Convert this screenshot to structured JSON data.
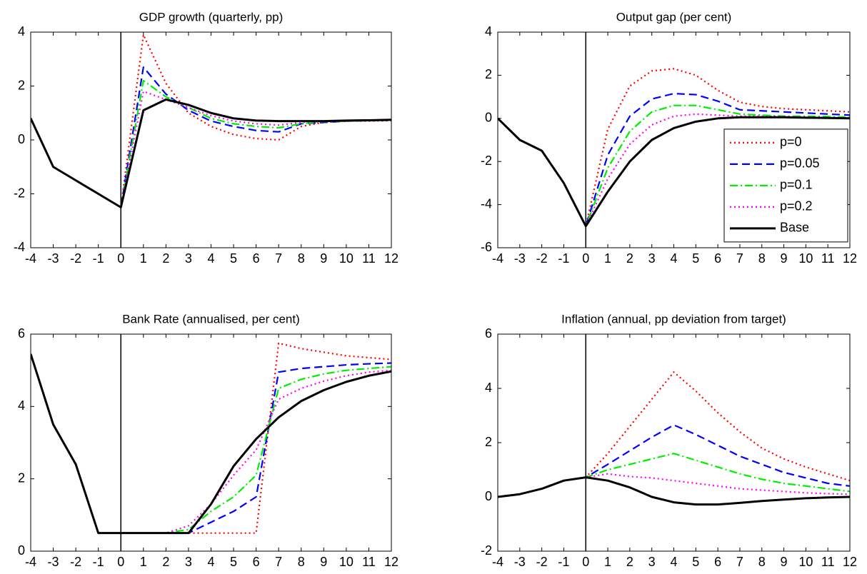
{
  "chart_data": [
    {
      "type": "line",
      "title": "GDP growth (quarterly, pp)",
      "x": [
        -4,
        -3,
        -2,
        -1,
        0,
        1,
        2,
        3,
        4,
        5,
        6,
        7,
        8,
        9,
        10,
        11,
        12
      ],
      "xlim": [
        -4,
        12
      ],
      "xticks": [
        -4,
        -3,
        -2,
        -1,
        0,
        1,
        2,
        3,
        4,
        5,
        6,
        7,
        8,
        9,
        10,
        11,
        12
      ],
      "ylim": [
        -4,
        4
      ],
      "yticks": [
        -4,
        -2,
        0,
        2,
        4
      ],
      "vline": 0,
      "series": [
        {
          "color": "#ff0000",
          "dash": "dotted",
          "values": [
            0.8,
            -1,
            -1.5,
            -2,
            -2.5,
            3.9,
            2.1,
            1.0,
            0.5,
            0.2,
            0.05,
            0.0,
            0.5,
            0.65,
            0.7,
            0.7,
            0.72
          ]
        },
        {
          "color": "#0000ff",
          "dash": "dashed",
          "values": [
            0.8,
            -1,
            -1.5,
            -2,
            -2.5,
            2.7,
            1.7,
            1.1,
            0.7,
            0.5,
            0.35,
            0.3,
            0.6,
            0.65,
            0.7,
            0.72,
            0.73
          ]
        },
        {
          "color": "#00ee00",
          "dash": "dashdot",
          "values": [
            0.8,
            -1,
            -1.5,
            -2,
            -2.5,
            2.2,
            1.6,
            1.2,
            0.8,
            0.6,
            0.5,
            0.45,
            0.6,
            0.68,
            0.7,
            0.72,
            0.74
          ]
        },
        {
          "color": "#ff00ff",
          "dash": "dotted",
          "values": [
            0.8,
            -1,
            -1.5,
            -2,
            -2.5,
            1.8,
            1.5,
            1.2,
            0.9,
            0.7,
            0.6,
            0.55,
            0.65,
            0.7,
            0.72,
            0.73,
            0.75
          ]
        },
        {
          "color": "#000000",
          "dash": "solid",
          "values": [
            0.8,
            -1,
            -1.5,
            -2,
            -2.5,
            1.1,
            1.5,
            1.3,
            1.0,
            0.8,
            0.72,
            0.7,
            0.7,
            0.7,
            0.72,
            0.73,
            0.75
          ]
        }
      ]
    },
    {
      "type": "line",
      "title": "Output gap (per cent)",
      "x": [
        -4,
        -3,
        -2,
        -1,
        0,
        1,
        2,
        3,
        4,
        5,
        6,
        7,
        8,
        9,
        10,
        11,
        12
      ],
      "xlim": [
        -4,
        12
      ],
      "xticks": [
        -4,
        -3,
        -2,
        -1,
        0,
        1,
        2,
        3,
        4,
        5,
        6,
        7,
        8,
        9,
        10,
        11,
        12
      ],
      "ylim": [
        -6,
        4
      ],
      "yticks": [
        -6,
        -4,
        -2,
        0,
        2,
        4
      ],
      "vline": 0,
      "legend": "right",
      "series": [
        {
          "name": "p=0",
          "color": "#ff0000",
          "dash": "dotted",
          "values": [
            0,
            -1,
            -1.5,
            -3,
            -5,
            -0.5,
            1.5,
            2.2,
            2.3,
            2.0,
            1.3,
            0.75,
            0.55,
            0.45,
            0.4,
            0.35,
            0.3
          ]
        },
        {
          "name": "p=0.05",
          "color": "#0000ff",
          "dash": "dashed",
          "values": [
            0,
            -1,
            -1.5,
            -3,
            -5,
            -1.7,
            0.1,
            0.9,
            1.15,
            1.1,
            0.8,
            0.4,
            0.35,
            0.3,
            0.25,
            0.2,
            0.15
          ]
        },
        {
          "name": "p=0.1",
          "color": "#00ee00",
          "dash": "dashdot",
          "values": [
            0,
            -1,
            -1.5,
            -3,
            -5,
            -2.3,
            -0.6,
            0.3,
            0.6,
            0.6,
            0.4,
            0.2,
            0.15,
            0.1,
            0.1,
            0.08,
            0.05
          ]
        },
        {
          "name": "p=0.2",
          "color": "#ff00ff",
          "dash": "dotted",
          "values": [
            0,
            -1,
            -1.5,
            -3,
            -5,
            -2.8,
            -1.2,
            -0.3,
            0.1,
            0.2,
            0.15,
            0.1,
            0.1,
            0.08,
            0.05,
            0.03,
            0.02
          ]
        },
        {
          "name": "Base",
          "color": "#000000",
          "dash": "solid",
          "values": [
            0,
            -1,
            -1.5,
            -3,
            -5,
            -3.4,
            -2,
            -1,
            -0.45,
            -0.15,
            0,
            0.05,
            0.05,
            0.05,
            0.03,
            0.02,
            0
          ]
        }
      ]
    },
    {
      "type": "line",
      "title": "Bank Rate (annualised, per cent)",
      "x": [
        -4,
        -3,
        -2,
        -1,
        0,
        1,
        2,
        3,
        4,
        5,
        6,
        7,
        8,
        9,
        10,
        11,
        12
      ],
      "xlim": [
        -4,
        12
      ],
      "xticks": [
        -4,
        -3,
        -2,
        -1,
        0,
        1,
        2,
        3,
        4,
        5,
        6,
        7,
        8,
        9,
        10,
        11,
        12
      ],
      "ylim": [
        0,
        6
      ],
      "yticks": [
        0,
        2,
        4,
        6
      ],
      "vline": 0,
      "series": [
        {
          "color": "#ff0000",
          "dash": "dotted",
          "values": [
            5.45,
            3.5,
            2.4,
            0.5,
            0.5,
            0.5,
            0.5,
            0.5,
            0.5,
            0.5,
            0.5,
            5.75,
            5.6,
            5.5,
            5.4,
            5.35,
            5.3
          ]
        },
        {
          "color": "#0000ff",
          "dash": "dashed",
          "values": [
            5.45,
            3.5,
            2.4,
            0.5,
            0.5,
            0.5,
            0.5,
            0.5,
            0.8,
            1.1,
            1.5,
            4.95,
            5.05,
            5.1,
            5.15,
            5.18,
            5.2
          ]
        },
        {
          "color": "#00ee00",
          "dash": "dashdot",
          "values": [
            5.45,
            3.5,
            2.4,
            0.5,
            0.5,
            0.5,
            0.5,
            0.6,
            1.1,
            1.5,
            2.1,
            4.5,
            4.75,
            4.9,
            5.0,
            5.05,
            5.1
          ]
        },
        {
          "color": "#ff00ff",
          "dash": "dotted",
          "values": [
            5.45,
            3.5,
            2.4,
            0.5,
            0.5,
            0.5,
            0.5,
            0.7,
            1.3,
            2.1,
            2.8,
            4.2,
            4.5,
            4.7,
            4.85,
            4.95,
            5.0
          ]
        },
        {
          "color": "#000000",
          "dash": "solid",
          "values": [
            5.45,
            3.5,
            2.4,
            0.5,
            0.5,
            0.5,
            0.5,
            0.5,
            1.3,
            2.35,
            3.1,
            3.7,
            4.15,
            4.45,
            4.68,
            4.85,
            4.97
          ]
        }
      ]
    },
    {
      "type": "line",
      "title": "Inflation (annual, pp deviation from target)",
      "x": [
        -4,
        -3,
        -2,
        -1,
        0,
        1,
        2,
        3,
        4,
        5,
        6,
        7,
        8,
        9,
        10,
        11,
        12
      ],
      "xlim": [
        -4,
        12
      ],
      "xticks": [
        -4,
        -3,
        -2,
        -1,
        0,
        1,
        2,
        3,
        4,
        5,
        6,
        7,
        8,
        9,
        10,
        11,
        12
      ],
      "ylim": [
        -2,
        6
      ],
      "yticks": [
        -2,
        0,
        2,
        4,
        6
      ],
      "vline": 0,
      "series": [
        {
          "color": "#ff0000",
          "dash": "dotted",
          "values": [
            0,
            0.1,
            0.3,
            0.6,
            0.72,
            1.6,
            2.6,
            3.6,
            4.6,
            3.9,
            3.1,
            2.4,
            1.8,
            1.4,
            1.1,
            0.85,
            0.6
          ]
        },
        {
          "color": "#0000ff",
          "dash": "dashed",
          "values": [
            0,
            0.1,
            0.3,
            0.6,
            0.72,
            1.2,
            1.7,
            2.2,
            2.65,
            2.3,
            1.9,
            1.5,
            1.2,
            0.9,
            0.7,
            0.5,
            0.4
          ]
        },
        {
          "color": "#00ee00",
          "dash": "dashdot",
          "values": [
            0,
            0.1,
            0.3,
            0.6,
            0.72,
            1.0,
            1.2,
            1.4,
            1.6,
            1.35,
            1.1,
            0.85,
            0.65,
            0.5,
            0.4,
            0.3,
            0.2
          ]
        },
        {
          "color": "#ff00ff",
          "dash": "dotted",
          "values": [
            0,
            0.1,
            0.3,
            0.6,
            0.72,
            0.85,
            0.75,
            0.7,
            0.6,
            0.5,
            0.4,
            0.3,
            0.25,
            0.2,
            0.15,
            0.12,
            0.1
          ]
        },
        {
          "color": "#000000",
          "dash": "solid",
          "values": [
            0,
            0.1,
            0.3,
            0.6,
            0.72,
            0.6,
            0.35,
            0,
            -0.2,
            -0.28,
            -0.28,
            -0.22,
            -0.15,
            -0.1,
            -0.05,
            -0.02,
            0
          ]
        }
      ]
    }
  ]
}
